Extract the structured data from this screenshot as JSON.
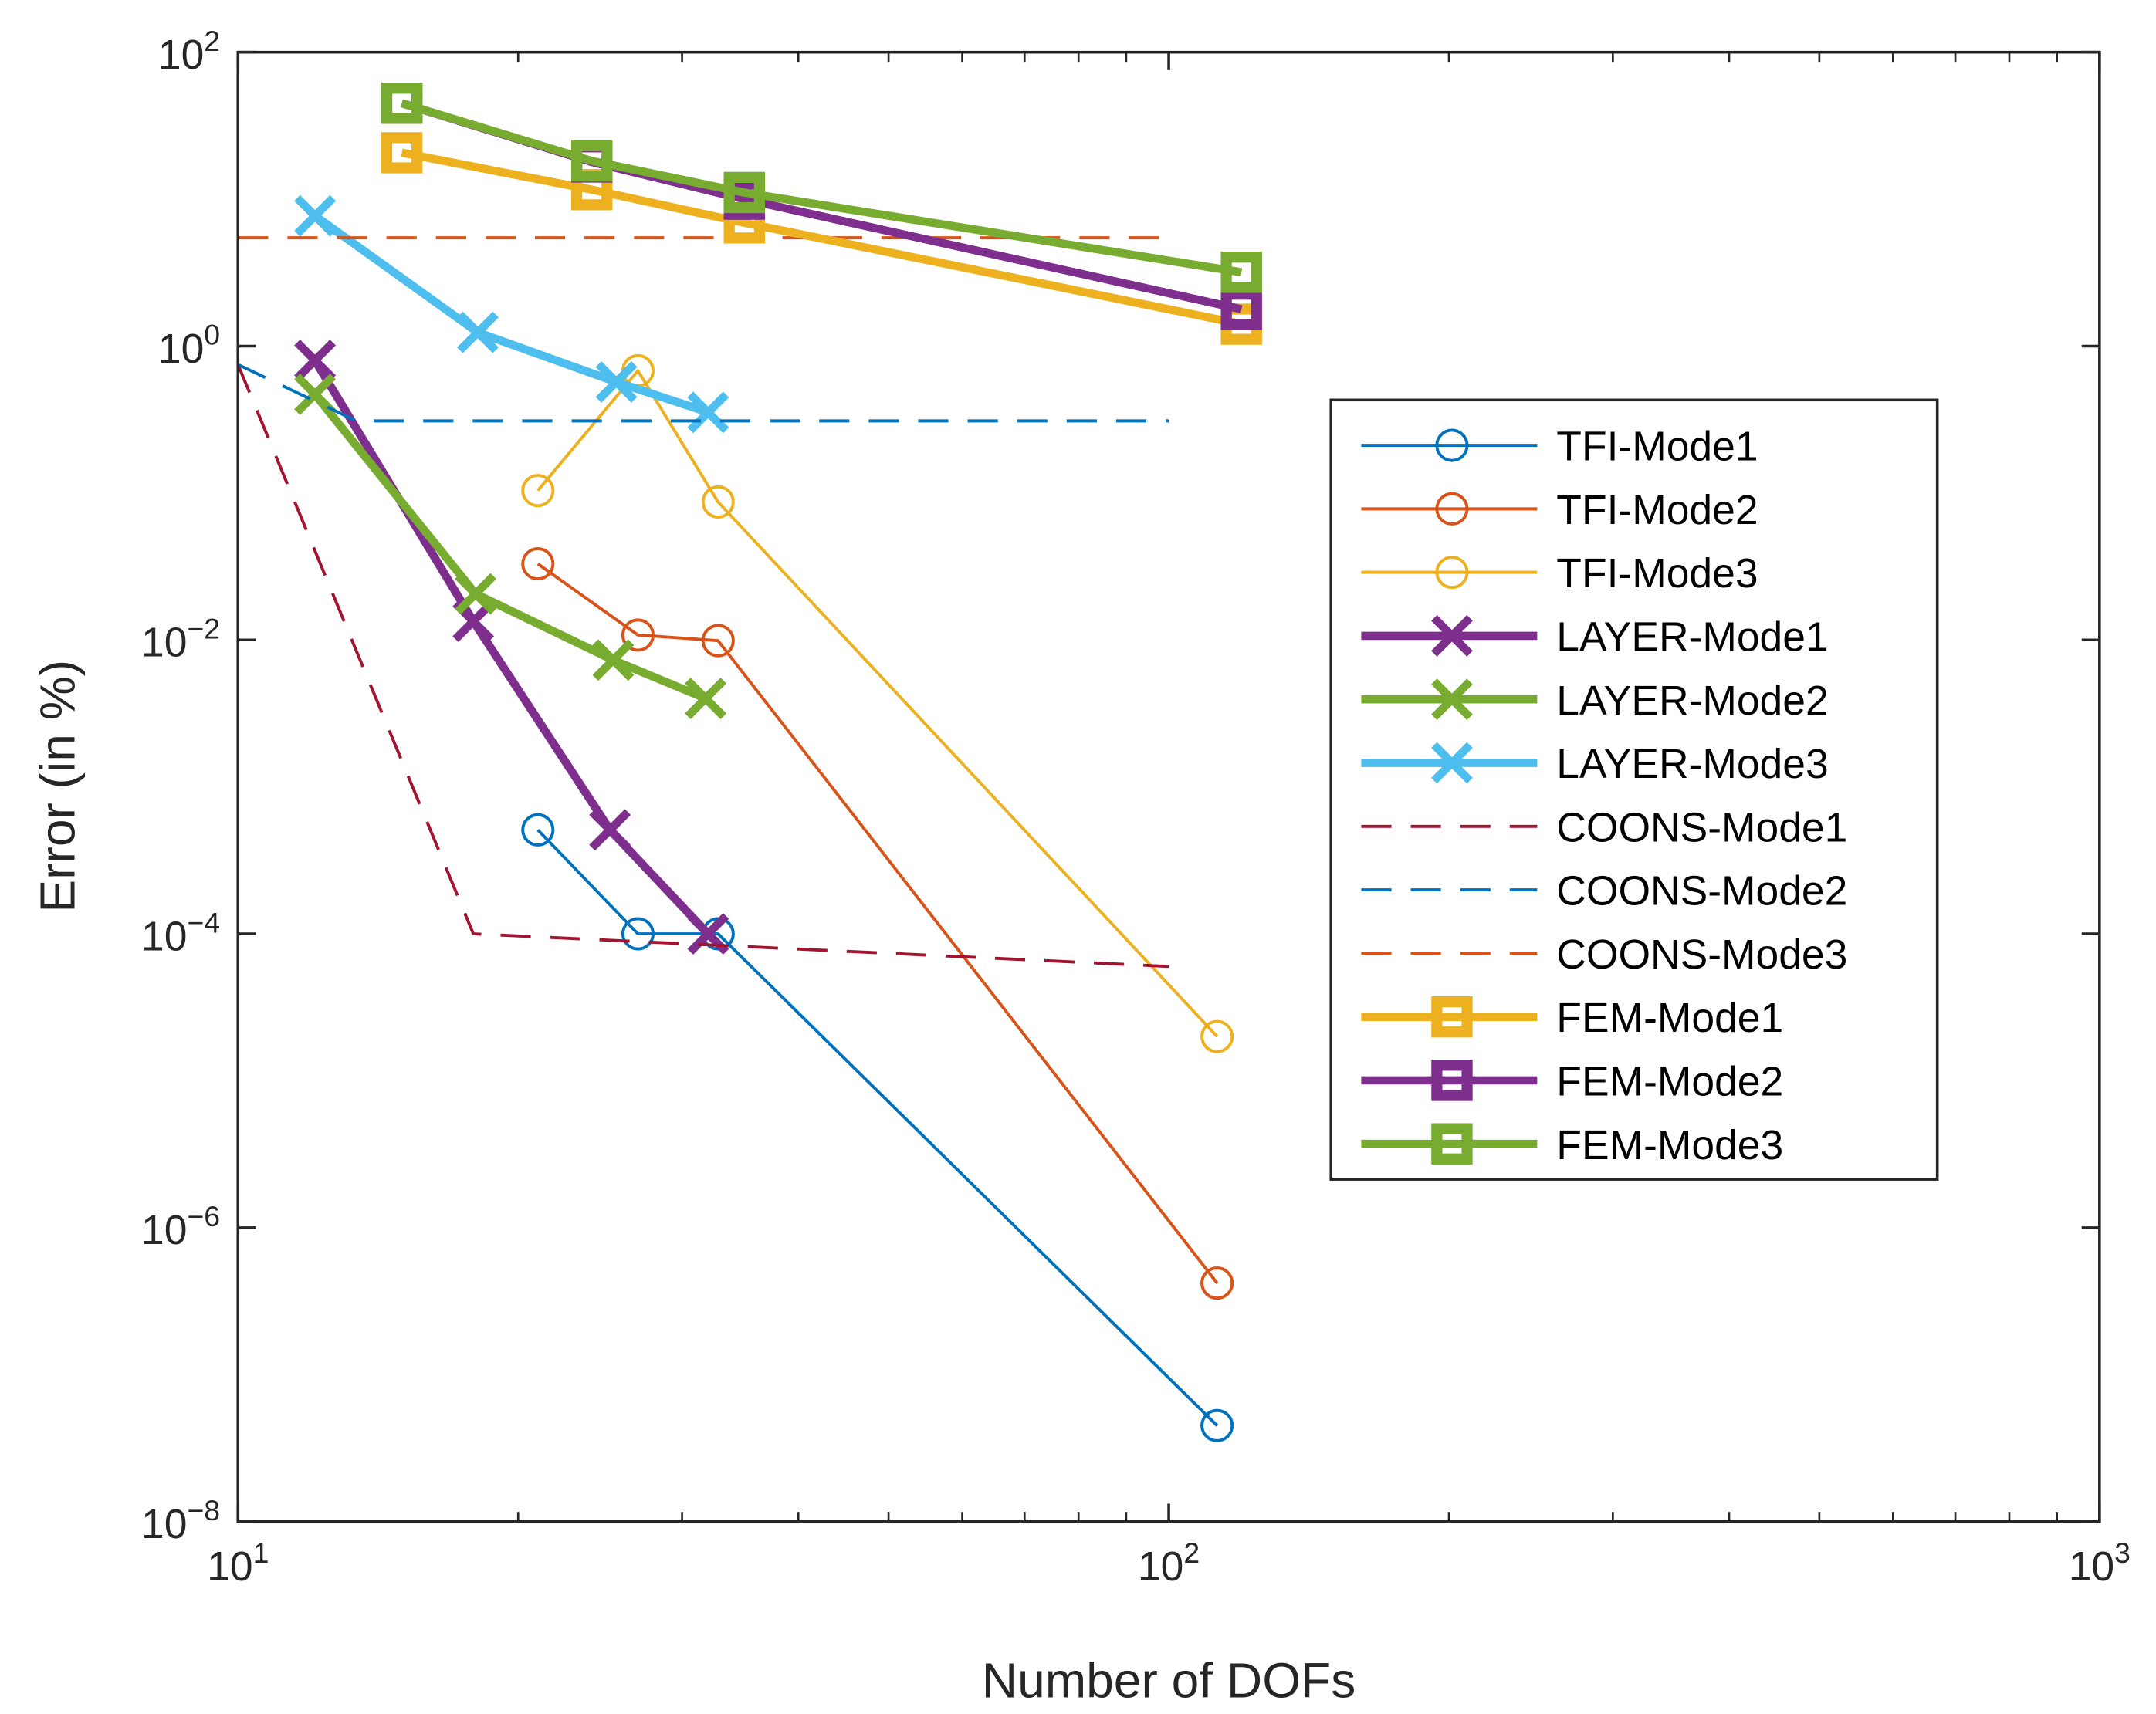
{
  "chart_data": {
    "type": "line",
    "xscale": "log",
    "yscale": "log",
    "xlabel": "Number of DOFs",
    "ylabel": "Error (in %)",
    "xlim": [
      10,
      1000
    ],
    "ylim": [
      1e-08,
      100
    ],
    "x_ticks": [
      {
        "value": 10,
        "base": "10",
        "exp": "1"
      },
      {
        "value": 100,
        "base": "10",
        "exp": "2"
      },
      {
        "value": 1000,
        "base": "10",
        "exp": "3"
      }
    ],
    "y_ticks": [
      {
        "value": 100,
        "base": "10",
        "exp": "2"
      },
      {
        "value": 1,
        "base": "10",
        "exp": "0"
      },
      {
        "value": 0.01,
        "base": "10",
        "exp": "−2"
      },
      {
        "value": 0.0001,
        "base": "10",
        "exp": "−4"
      },
      {
        "value": 1e-06,
        "base": "10",
        "exp": "−6"
      },
      {
        "value": 1e-08,
        "base": "10",
        "exp": "−8"
      }
    ],
    "grid": false,
    "legend_position": "right-center",
    "series": [
      {
        "name": "TFI-Mode1",
        "color": "#0072BD",
        "style": "solid",
        "marker": "circle",
        "width": "thin",
        "x": [
          21.0,
          26.9,
          32.8,
          112.7
        ],
        "y": [
          0.00051,
          0.0001,
          0.0001,
          4.5e-08
        ]
      },
      {
        "name": "TFI-Mode2",
        "color": "#D95319",
        "style": "solid",
        "marker": "circle",
        "width": "thin",
        "x": [
          21.0,
          26.9,
          32.8,
          112.7
        ],
        "y": [
          0.033,
          0.0108,
          0.0099,
          4.2e-07
        ]
      },
      {
        "name": "TFI-Mode3",
        "color": "#EDB120",
        "style": "solid",
        "marker": "circle",
        "width": "thin",
        "x": [
          21.0,
          26.9,
          32.8,
          112.7
        ],
        "y": [
          0.104,
          0.68,
          0.087,
          2e-05
        ]
      },
      {
        "name": "LAYER-Mode1",
        "color": "#7E2F8E",
        "style": "solid",
        "marker": "x",
        "width": "thick",
        "x": [
          12.1,
          17.9,
          25.1,
          32.0
        ],
        "y": [
          0.8,
          0.0134,
          0.00051,
          0.0001
        ]
      },
      {
        "name": "LAYER-Mode2",
        "color": "#77AC30",
        "style": "solid",
        "marker": "x",
        "width": "thick",
        "x": [
          12.1,
          18.0,
          25.3,
          31.8
        ],
        "y": [
          0.47,
          0.0206,
          0.0073,
          0.004
        ]
      },
      {
        "name": "LAYER-Mode3",
        "color": "#4DBEEE",
        "style": "solid",
        "marker": "x",
        "width": "thick",
        "x": [
          12.1,
          18.1,
          25.5,
          32.0
        ],
        "y": [
          7.7,
          1.24,
          0.57,
          0.354
        ]
      },
      {
        "name": "COONS-Mode1",
        "color": "#A2142F",
        "style": "dashed",
        "marker": "none",
        "width": "thin",
        "x": [
          10,
          17.9,
          100
        ],
        "y": [
          0.75,
          0.0001,
          6e-05
        ]
      },
      {
        "name": "COONS-Mode2",
        "color": "#0072BD",
        "style": "dashed",
        "marker": "none",
        "width": "thin",
        "x": [
          10,
          13.4,
          100
        ],
        "y": [
          0.75,
          0.31,
          0.31
        ]
      },
      {
        "name": "COONS-Mode3",
        "color": "#D95319",
        "style": "dashed",
        "marker": "none",
        "width": "thin",
        "x": [
          10,
          100
        ],
        "y": [
          5.46,
          5.46
        ]
      },
      {
        "name": "FEM-Mode1",
        "color": "#EDB120",
        "style": "solid",
        "marker": "square",
        "width": "thick",
        "x": [
          15.0,
          24.0,
          35.0,
          119.7
        ],
        "y": [
          20.7,
          11.6,
          6.9,
          1.41
        ]
      },
      {
        "name": "FEM-Mode2",
        "color": "#7E2F8E",
        "style": "solid",
        "marker": "square",
        "width": "thick",
        "x": [
          15.0,
          24.0,
          35.0,
          119.7
        ],
        "y": [
          45,
          17.9,
          10.0,
          1.78
        ]
      },
      {
        "name": "FEM-Mode3",
        "color": "#77AC30",
        "style": "solid",
        "marker": "square",
        "width": "thick",
        "x": [
          15.0,
          24.0,
          35.0,
          119.7
        ],
        "y": [
          45,
          18.2,
          11.1,
          3.18
        ]
      }
    ]
  }
}
